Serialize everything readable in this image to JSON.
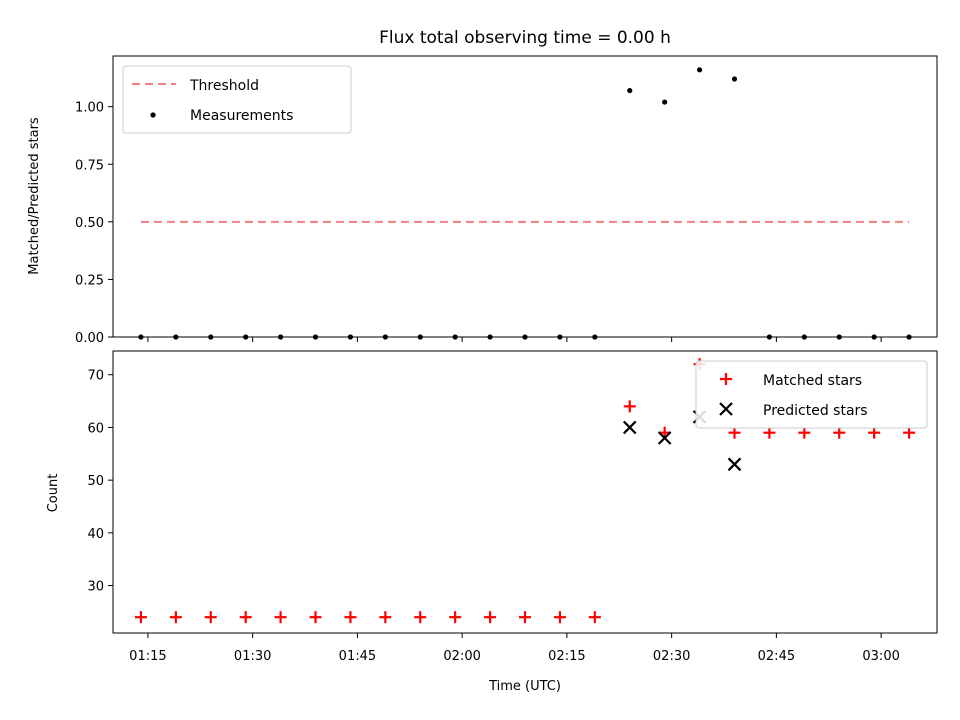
{
  "chart_data": [
    {
      "type": "scatter",
      "title": "Flux total observing time = 0.00 h",
      "xlabel": "",
      "ylabel": "Matched/Predicted stars",
      "ylim": [
        0,
        1.22
      ],
      "yticks": [
        0.0,
        0.25,
        0.5,
        0.75,
        1.0
      ],
      "ytick_labels": [
        "0.00",
        "0.25",
        "0.50",
        "0.75",
        "1.00"
      ],
      "xlim": [
        "01:10",
        "03:08"
      ],
      "legend_position": "top-left",
      "threshold": {
        "name": "Threshold",
        "value": 0.5,
        "x_range": [
          "01:14",
          "03:04"
        ],
        "color": "#f08080",
        "style": "dashed"
      },
      "series": [
        {
          "name": "Measurements",
          "marker": "dot",
          "color": "#000000",
          "x": [
            "01:14",
            "01:19",
            "01:24",
            "01:29",
            "01:34",
            "01:39",
            "01:44",
            "01:49",
            "01:54",
            "01:59",
            "02:04",
            "02:09",
            "02:14",
            "02:19",
            "02:24",
            "02:29",
            "02:34",
            "02:39",
            "02:44",
            "02:49",
            "02:54",
            "02:59",
            "03:04"
          ],
          "values": [
            0,
            0,
            0,
            0,
            0,
            0,
            0,
            0,
            0,
            0,
            0,
            0,
            0,
            0,
            1.07,
            1.02,
            1.16,
            1.12,
            0,
            0,
            0,
            0,
            0
          ]
        }
      ]
    },
    {
      "type": "scatter",
      "title": "",
      "xlabel": "Time (UTC)",
      "ylabel": "Count",
      "ylim": [
        21,
        74.5
      ],
      "yticks": [
        30,
        40,
        50,
        60,
        70
      ],
      "ytick_labels": [
        "30",
        "40",
        "50",
        "60",
        "70"
      ],
      "xlim": [
        "01:10",
        "03:08"
      ],
      "xticks": [
        "01:15",
        "01:30",
        "01:45",
        "02:00",
        "02:15",
        "02:30",
        "02:45",
        "03:00"
      ],
      "xtick_labels": [
        "01:15",
        "01:30",
        "01:45",
        "02:00",
        "02:15",
        "02:30",
        "02:45",
        "03:00"
      ],
      "legend_position": "top-right",
      "series": [
        {
          "name": "Matched stars",
          "marker": "plus",
          "color": "#ff0000",
          "x": [
            "01:14",
            "01:19",
            "01:24",
            "01:29",
            "01:34",
            "01:39",
            "01:44",
            "01:49",
            "01:54",
            "01:59",
            "02:04",
            "02:09",
            "02:14",
            "02:19",
            "02:24",
            "02:29",
            "02:34",
            "02:39",
            "02:44",
            "02:49",
            "02:54",
            "02:59",
            "03:04"
          ],
          "values": [
            24,
            24,
            24,
            24,
            24,
            24,
            24,
            24,
            24,
            24,
            24,
            24,
            24,
            24,
            64,
            59,
            72,
            59,
            59,
            59,
            59,
            59,
            59
          ]
        },
        {
          "name": "Predicted stars",
          "marker": "x",
          "color": "#000000",
          "x": [
            "02:24",
            "02:29",
            "02:34",
            "02:39"
          ],
          "values": [
            60,
            58,
            62,
            53
          ]
        }
      ]
    }
  ]
}
